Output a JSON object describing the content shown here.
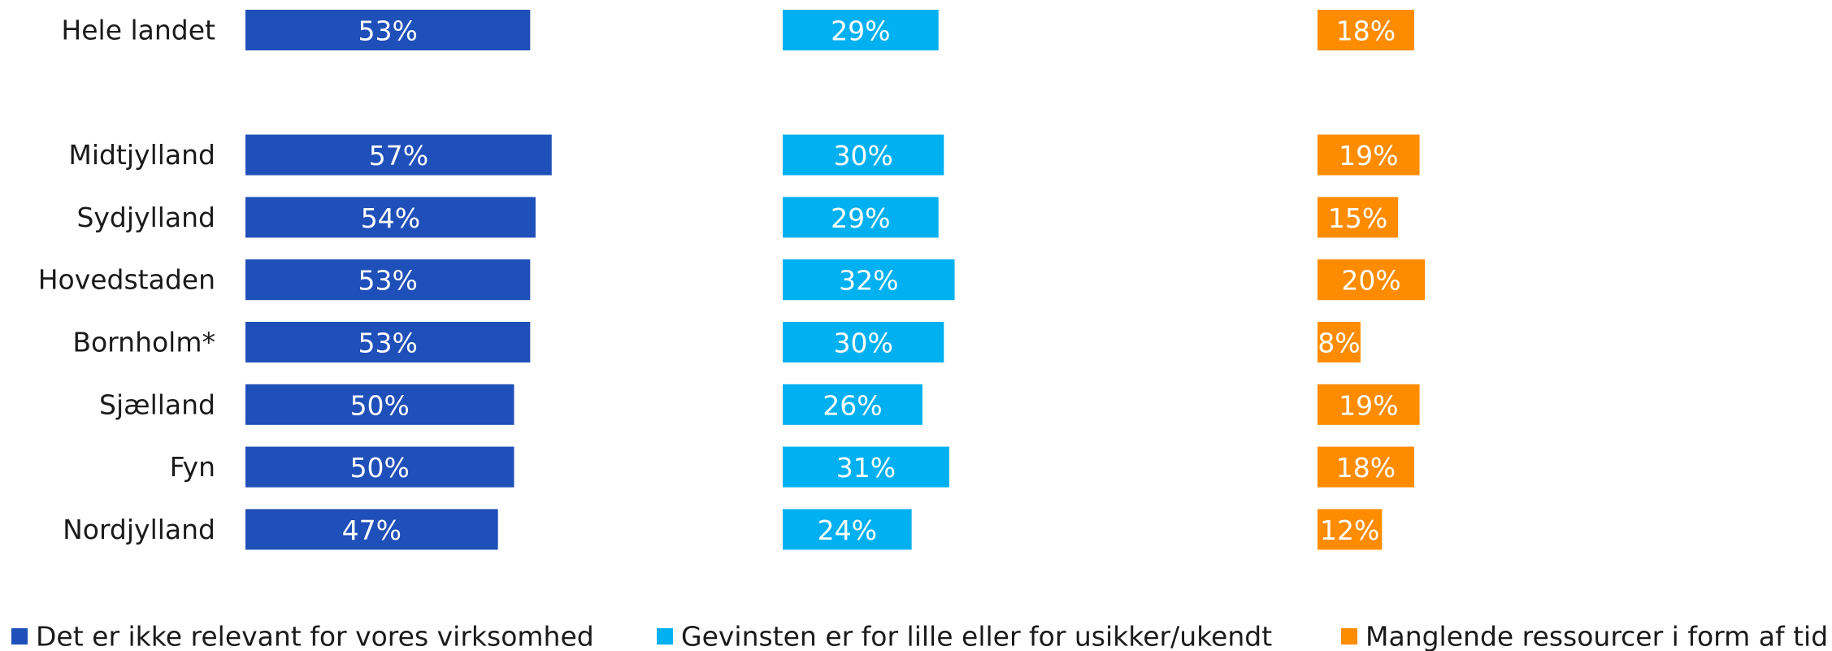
{
  "chart_data": {
    "type": "bar",
    "orientation": "horizontal",
    "categories": [
      "Hele landet",
      null,
      "Midtjylland",
      "Sydjylland",
      "Hovedstaden",
      "Bornholm*",
      "Sjælland",
      "Fyn",
      "Nordjylland"
    ],
    "series": [
      {
        "name": "Det er ikke relevant for vores virksomhed",
        "color": "#1f4fb8",
        "values": [
          53,
          null,
          57,
          54,
          53,
          53,
          50,
          50,
          47
        ],
        "value_labels": [
          "53%",
          null,
          "57%",
          "54%",
          "53%",
          "53%",
          "50%",
          "50%",
          "47%"
        ]
      },
      {
        "name": "Gevinsten er for lille eller for usikker/ukendt",
        "color": "#00b0f0",
        "values": [
          29,
          null,
          30,
          29,
          32,
          30,
          26,
          31,
          24
        ],
        "value_labels": [
          "29%",
          null,
          "30%",
          "29%",
          "32%",
          "30%",
          "26%",
          "31%",
          "24%"
        ]
      },
      {
        "name": "Manglende ressourcer i form af tid",
        "color": "#ff8c00",
        "values": [
          18,
          null,
          19,
          15,
          20,
          8,
          19,
          18,
          12
        ],
        "value_labels": [
          "18%",
          null,
          "19%",
          "15%",
          "20%",
          "8%",
          "19%",
          "18%",
          "12%"
        ]
      }
    ],
    "legend": "bottom"
  }
}
